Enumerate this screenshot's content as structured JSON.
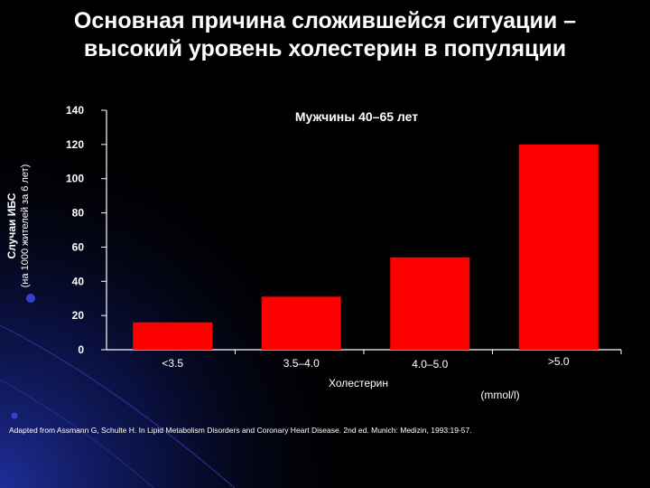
{
  "title_line1": "Основная причина сложившейся ситуации –",
  "title_line2": "высокий уровень холестерин в популяции",
  "source": "Adapted from Assmann G, Schulte H. In Lipid Metabolism Disorders and Coronary Heart Disease. 2nd ed. Munich: Medizin, 1993:19-57.",
  "colors": {
    "bar": "#ff0000",
    "axis": "#ffffff",
    "background": "#000000",
    "accent": "#1a2a9a"
  },
  "chart_data": {
    "type": "bar",
    "title": "Мужчины 40–65 лет",
    "categories": [
      "<3.5",
      "3.5–4.0",
      "4.0–5.0",
      ">5.0"
    ],
    "values": [
      16,
      31,
      54,
      120
    ],
    "xlabel": "Холестерин",
    "xunit": "(mmol/l)",
    "ylabel_line1": "Случаи ИБС",
    "ylabel_line2": "(на 1000 жителей за 6 лет)",
    "ylim": [
      0,
      140
    ],
    "yticks": [
      0,
      20,
      40,
      60,
      80,
      100,
      120,
      140
    ],
    "grid": false,
    "legend": "none"
  }
}
